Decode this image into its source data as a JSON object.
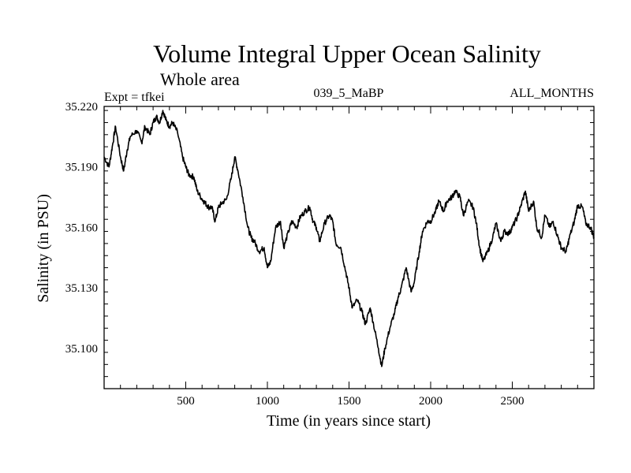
{
  "chart_data": {
    "type": "line",
    "title": "Volume Integral Upper Ocean Salinity",
    "subtitle": "Whole area",
    "annotations": {
      "experiment": "Expt = tfkei",
      "run": "039_5_MaBP",
      "months": "ALL_MONTHS"
    },
    "xlabel": "Time (in years since start)",
    "ylabel": "Salinity (in PSU)",
    "xlim": [
      0,
      3000
    ],
    "ylim": [
      35.08,
      35.22
    ],
    "xticks": [
      500,
      1000,
      1500,
      2000,
      2500
    ],
    "xtick_labels": [
      "500",
      "1000",
      "1500",
      "2000",
      "2500"
    ],
    "yticks": [
      35.1,
      35.13,
      35.16,
      35.19,
      35.22
    ],
    "ytick_labels": [
      "35.100",
      "35.130",
      "35.160",
      "35.190",
      "35.220"
    ],
    "grid": false,
    "legend": "none",
    "line_color": "#000000",
    "series": [
      {
        "x": [
          0,
          30,
          50,
          70,
          100,
          120,
          140,
          160,
          200,
          230,
          250,
          280,
          300,
          320,
          340,
          360,
          380,
          400,
          420,
          450,
          480,
          500,
          520,
          550,
          570,
          600,
          620,
          640,
          660,
          680,
          700,
          720,
          750,
          780,
          800,
          820,
          850,
          880,
          900,
          920,
          950,
          980,
          1000,
          1020,
          1050,
          1080,
          1100,
          1130,
          1150,
          1180,
          1200,
          1230,
          1260,
          1280,
          1300,
          1320,
          1350,
          1380,
          1400,
          1420,
          1450,
          1480,
          1500,
          1520,
          1550,
          1580,
          1600,
          1630,
          1650,
          1680,
          1700,
          1720,
          1750,
          1780,
          1800,
          1820,
          1850,
          1880,
          1900,
          1930,
          1950,
          1980,
          2000,
          2030,
          2050,
          2080,
          2100,
          2130,
          2150,
          2180,
          2200,
          2230,
          2260,
          2280,
          2300,
          2320,
          2350,
          2380,
          2400,
          2430,
          2450,
          2480,
          2500,
          2530,
          2550,
          2580,
          2600,
          2630,
          2650,
          2680,
          2700,
          2730,
          2750,
          2780,
          2800,
          2830,
          2850,
          2880,
          2900,
          2930,
          2950,
          2980,
          3000
        ],
        "values": [
          35.195,
          35.19,
          35.2,
          35.21,
          35.195,
          35.188,
          35.198,
          35.205,
          35.208,
          35.202,
          35.21,
          35.206,
          35.212,
          35.215,
          35.212,
          35.218,
          35.213,
          35.21,
          35.212,
          35.207,
          35.195,
          35.19,
          35.186,
          35.185,
          35.178,
          35.174,
          35.172,
          35.17,
          35.17,
          35.163,
          35.17,
          35.172,
          35.174,
          35.185,
          35.195,
          35.188,
          35.175,
          35.16,
          35.155,
          35.153,
          35.148,
          35.15,
          35.14,
          35.143,
          35.16,
          35.163,
          35.15,
          35.158,
          35.163,
          35.16,
          35.165,
          35.168,
          35.17,
          35.163,
          35.16,
          35.153,
          35.162,
          35.166,
          35.163,
          35.152,
          35.15,
          35.138,
          35.13,
          35.12,
          35.124,
          35.118,
          35.112,
          35.12,
          35.112,
          35.1,
          35.091,
          35.1,
          35.11,
          35.118,
          35.125,
          35.13,
          35.14,
          35.128,
          35.133,
          35.148,
          35.158,
          35.163,
          35.163,
          35.168,
          35.173,
          35.168,
          35.173,
          35.175,
          35.178,
          35.175,
          35.166,
          35.173,
          35.17,
          35.162,
          35.15,
          35.143,
          35.148,
          35.155,
          35.162,
          35.153,
          35.158,
          35.157,
          35.16,
          35.165,
          35.17,
          35.178,
          35.168,
          35.173,
          35.16,
          35.155,
          35.166,
          35.16,
          35.163,
          35.155,
          35.15,
          35.148,
          35.155,
          35.163,
          35.171,
          35.17,
          35.162,
          35.16,
          35.155
        ]
      }
    ]
  }
}
